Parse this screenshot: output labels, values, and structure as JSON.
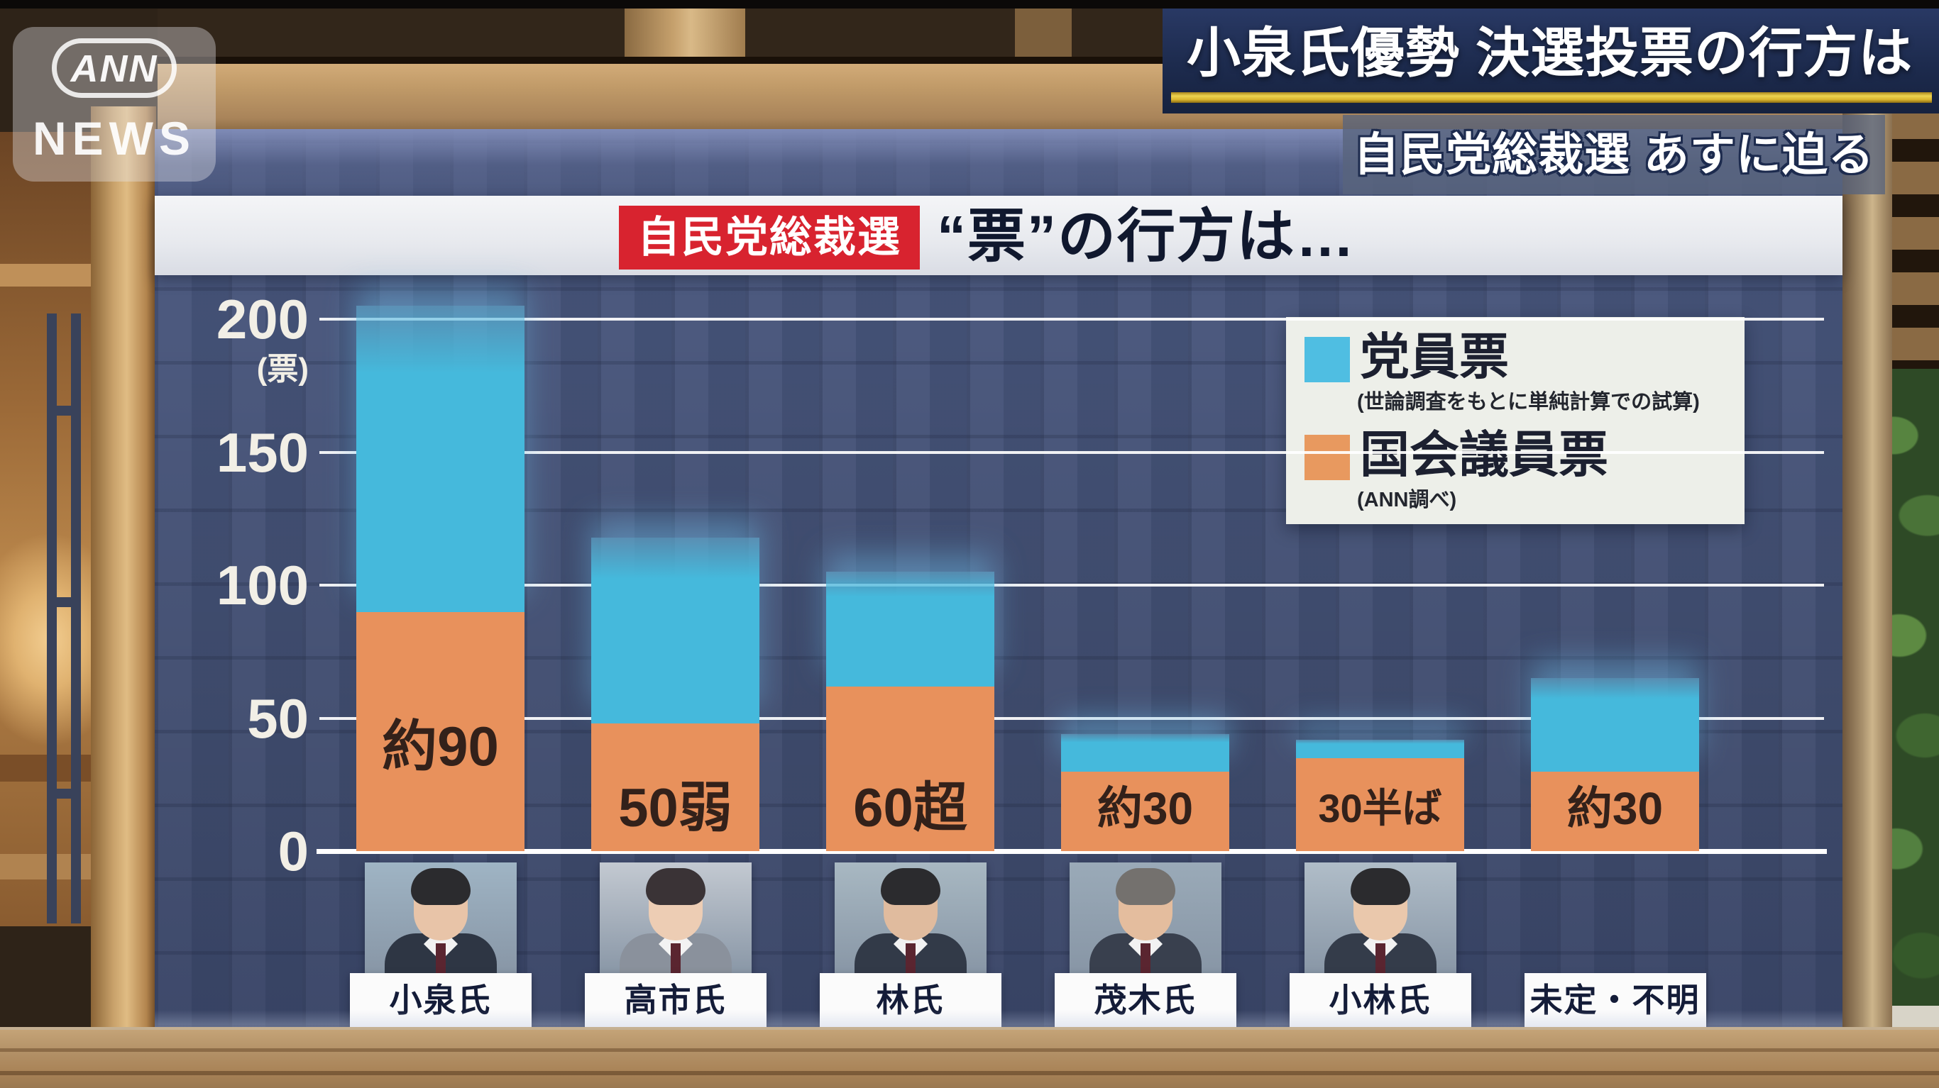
{
  "watermark": {
    "line1": "ANN",
    "line2": "NEWS"
  },
  "headline": {
    "line1": "小泉氏優勢 決選投票の行方は",
    "line2": "自民党総裁選 あすに迫る",
    "underline_color": "#e7c53a",
    "banner_bg": "#1d2b4e"
  },
  "board": {
    "title_tag": "自民党総裁選",
    "title_main": "“票”の行方は…",
    "tag_bg": "#d8232f",
    "screen_bg": "#46547a"
  },
  "legend": {
    "items": [
      {
        "label": "党員票",
        "note": "(世論調査をもとに単純計算での試算)",
        "color": "#4fbee2"
      },
      {
        "label": "国会議員票",
        "note": "(ANN調べ)",
        "color": "#e8995f"
      }
    ]
  },
  "chart_data": {
    "type": "bar",
    "stacked": true,
    "title": "自民党総裁選 “票”の行方は…",
    "unit": "票",
    "ylabel": "(票)",
    "yticks": [
      200,
      150,
      100,
      50,
      0
    ],
    "ylim": [
      0,
      215
    ],
    "grid": true,
    "legend_position": "top-right",
    "categories": [
      "小泉氏",
      "高市氏",
      "林氏",
      "茂木氏",
      "小林氏",
      "未定・不明"
    ],
    "series": [
      {
        "name": "国会議員票",
        "color": "#e8915c",
        "values": [
          90,
          48,
          62,
          30,
          35,
          30
        ],
        "labels": [
          "約90",
          "50弱",
          "60超",
          "約30",
          "30半ば",
          "約30"
        ]
      },
      {
        "name": "党員票",
        "color": "#45b9dc",
        "values": [
          115,
          70,
          43,
          14,
          7,
          35
        ],
        "labels": [
          "",
          "",
          "",
          "",
          "",
          ""
        ]
      }
    ],
    "totals_estimated": [
      205,
      118,
      105,
      44,
      42,
      65
    ]
  },
  "photos": {
    "has_photo": [
      true,
      true,
      true,
      true,
      true,
      false
    ],
    "avatars": [
      {
        "bg": "#9fb4c4",
        "hair": "#2b2b2e",
        "skin": "#e8c4a8",
        "suit": "#2e3644"
      },
      {
        "bg": "#c3c9d1",
        "hair": "#3a3336",
        "skin": "#edcdb4",
        "suit": "#8a919c"
      },
      {
        "bg": "#a8b8c2",
        "hair": "#2b2b2e",
        "skin": "#e0bb9e",
        "suit": "#323a48"
      },
      {
        "bg": "#9aaab8",
        "hair": "#74716e",
        "skin": "#e4bd9e",
        "suit": "#39404e"
      },
      {
        "bg": "#b0bdc8",
        "hair": "#2b2b2e",
        "skin": "#eac8ac",
        "suit": "#343c4a"
      }
    ]
  }
}
